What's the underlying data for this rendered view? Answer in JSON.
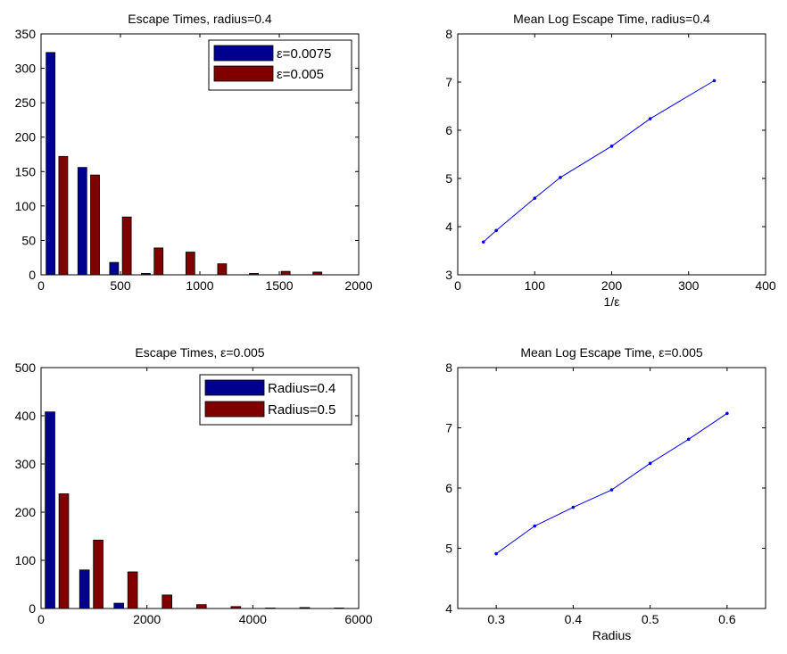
{
  "chart_data": [
    {
      "type": "bar",
      "title": "Escape Times, radius=0.4",
      "xlabel": "",
      "ylabel": "",
      "xlim": [
        0,
        2000
      ],
      "ylim": [
        0,
        350
      ],
      "xticks": [
        "0",
        "500",
        "1000",
        "1500",
        "2000"
      ],
      "yticks": [
        "0",
        "50",
        "100",
        "150",
        "200",
        "250",
        "300",
        "350"
      ],
      "legend_position": "top-right",
      "bin_width": 200,
      "categories": [
        100,
        300,
        500,
        700,
        900,
        1100,
        1300,
        1500,
        1700,
        1900
      ],
      "series": [
        {
          "name": "ε=0.0075",
          "color": "#00008F",
          "values": [
            323,
            156,
            18,
            2,
            0,
            0,
            0,
            0,
            0,
            0
          ]
        },
        {
          "name": "ε=0.005",
          "color": "#800000",
          "values": [
            172,
            145,
            84,
            39,
            33,
            16,
            2,
            5,
            4,
            0
          ]
        }
      ]
    },
    {
      "type": "line",
      "title": "Mean Log Escape Time, radius=0.4",
      "xlabel": "1/ε",
      "ylabel": "",
      "xlim": [
        0,
        400
      ],
      "ylim": [
        3,
        8
      ],
      "xticks": [
        "0",
        "100",
        "200",
        "300",
        "400"
      ],
      "yticks": [
        "3",
        "4",
        "5",
        "6",
        "7",
        "8"
      ],
      "series": [
        {
          "name": "",
          "color": "#0000FF",
          "x": [
            33.3,
            50,
            100,
            133.3,
            200,
            250,
            333.3
          ],
          "y": [
            3.68,
            3.92,
            4.59,
            5.02,
            5.67,
            6.24,
            7.03
          ]
        }
      ]
    },
    {
      "type": "bar",
      "title": "Escape Times, ε=0.005",
      "xlabel": "",
      "ylabel": "",
      "xlim": [
        0,
        6000
      ],
      "ylim": [
        0,
        500
      ],
      "xticks": [
        "0",
        "2000",
        "4000",
        "6000"
      ],
      "yticks": [
        "0",
        "100",
        "200",
        "300",
        "400",
        "500"
      ],
      "legend_position": "top-right",
      "bin_width": 650,
      "categories": [
        300,
        950,
        1600,
        2250,
        2900,
        3550,
        4200,
        4850,
        5500
      ],
      "series": [
        {
          "name": "Radius=0.4",
          "color": "#00008F",
          "values": [
            408,
            80,
            11,
            0,
            0,
            0,
            0,
            0,
            0
          ]
        },
        {
          "name": "Radius=0.5",
          "color": "#800000",
          "values": [
            238,
            142,
            76,
            28,
            8,
            4,
            1,
            2,
            1
          ]
        }
      ]
    },
    {
      "type": "line",
      "title": "Mean Log Escape Time, ε=0.005",
      "xlabel": "Radius",
      "ylabel": "",
      "xlim": [
        0.25,
        0.65
      ],
      "ylim": [
        4,
        8
      ],
      "xticks": [
        "0.3",
        "0.4",
        "0.5",
        "0.6"
      ],
      "yticks": [
        "4",
        "5",
        "6",
        "7",
        "8"
      ],
      "series": [
        {
          "name": "",
          "color": "#0000FF",
          "x": [
            0.3,
            0.35,
            0.4,
            0.45,
            0.5,
            0.55,
            0.6
          ],
          "y": [
            4.91,
            5.37,
            5.68,
            5.97,
            6.41,
            6.81,
            7.24
          ]
        }
      ]
    }
  ]
}
